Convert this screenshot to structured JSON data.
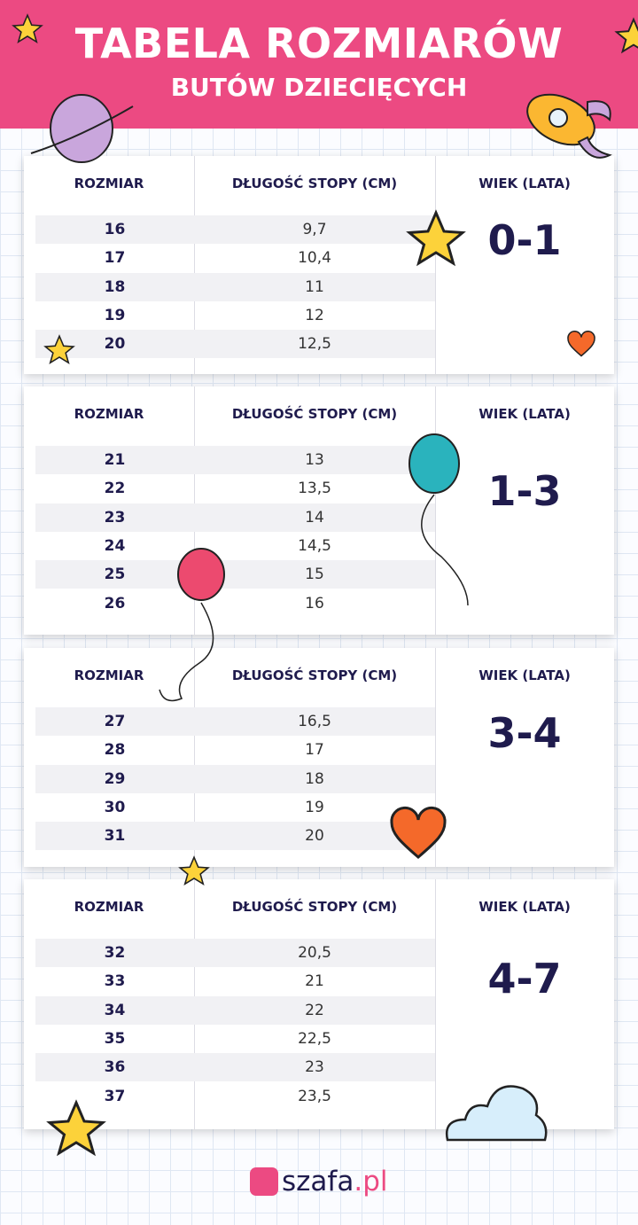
{
  "header": {
    "title": "TABELA ROZMIARÓW",
    "subtitle": "BUTÓW DZIECIĘCYCH"
  },
  "columns": {
    "size": "ROZMIAR",
    "length": "DŁUGOŚĆ STOPY (CM)",
    "age": "WIEK (LATA)"
  },
  "tables": [
    {
      "age": "0-1",
      "rows": [
        [
          "16",
          "9,7"
        ],
        [
          "17",
          "10,4"
        ],
        [
          "18",
          "11"
        ],
        [
          "19",
          "12"
        ],
        [
          "20",
          "12,5"
        ]
      ]
    },
    {
      "age": "1-3",
      "rows": [
        [
          "21",
          "13"
        ],
        [
          "22",
          "13,5"
        ],
        [
          "23",
          "14"
        ],
        [
          "24",
          "14,5"
        ],
        [
          "25",
          "15"
        ],
        [
          "26",
          "16"
        ]
      ]
    },
    {
      "age": "3-4",
      "rows": [
        [
          "27",
          "16,5"
        ],
        [
          "28",
          "17"
        ],
        [
          "29",
          "18"
        ],
        [
          "30",
          "19"
        ],
        [
          "31",
          "20"
        ]
      ]
    },
    {
      "age": "4-7",
      "rows": [
        [
          "32",
          "20,5"
        ],
        [
          "33",
          "21"
        ],
        [
          "34",
          "22"
        ],
        [
          "35",
          "22,5"
        ],
        [
          "36",
          "23"
        ],
        [
          "37",
          "23,5"
        ]
      ]
    }
  ],
  "logo": {
    "name": "szafa",
    ".pl": ".pl",
    "brand_color": "#ec4a82"
  },
  "colors": {
    "banner": "#ec4a82",
    "text": "#1f1b4d"
  }
}
